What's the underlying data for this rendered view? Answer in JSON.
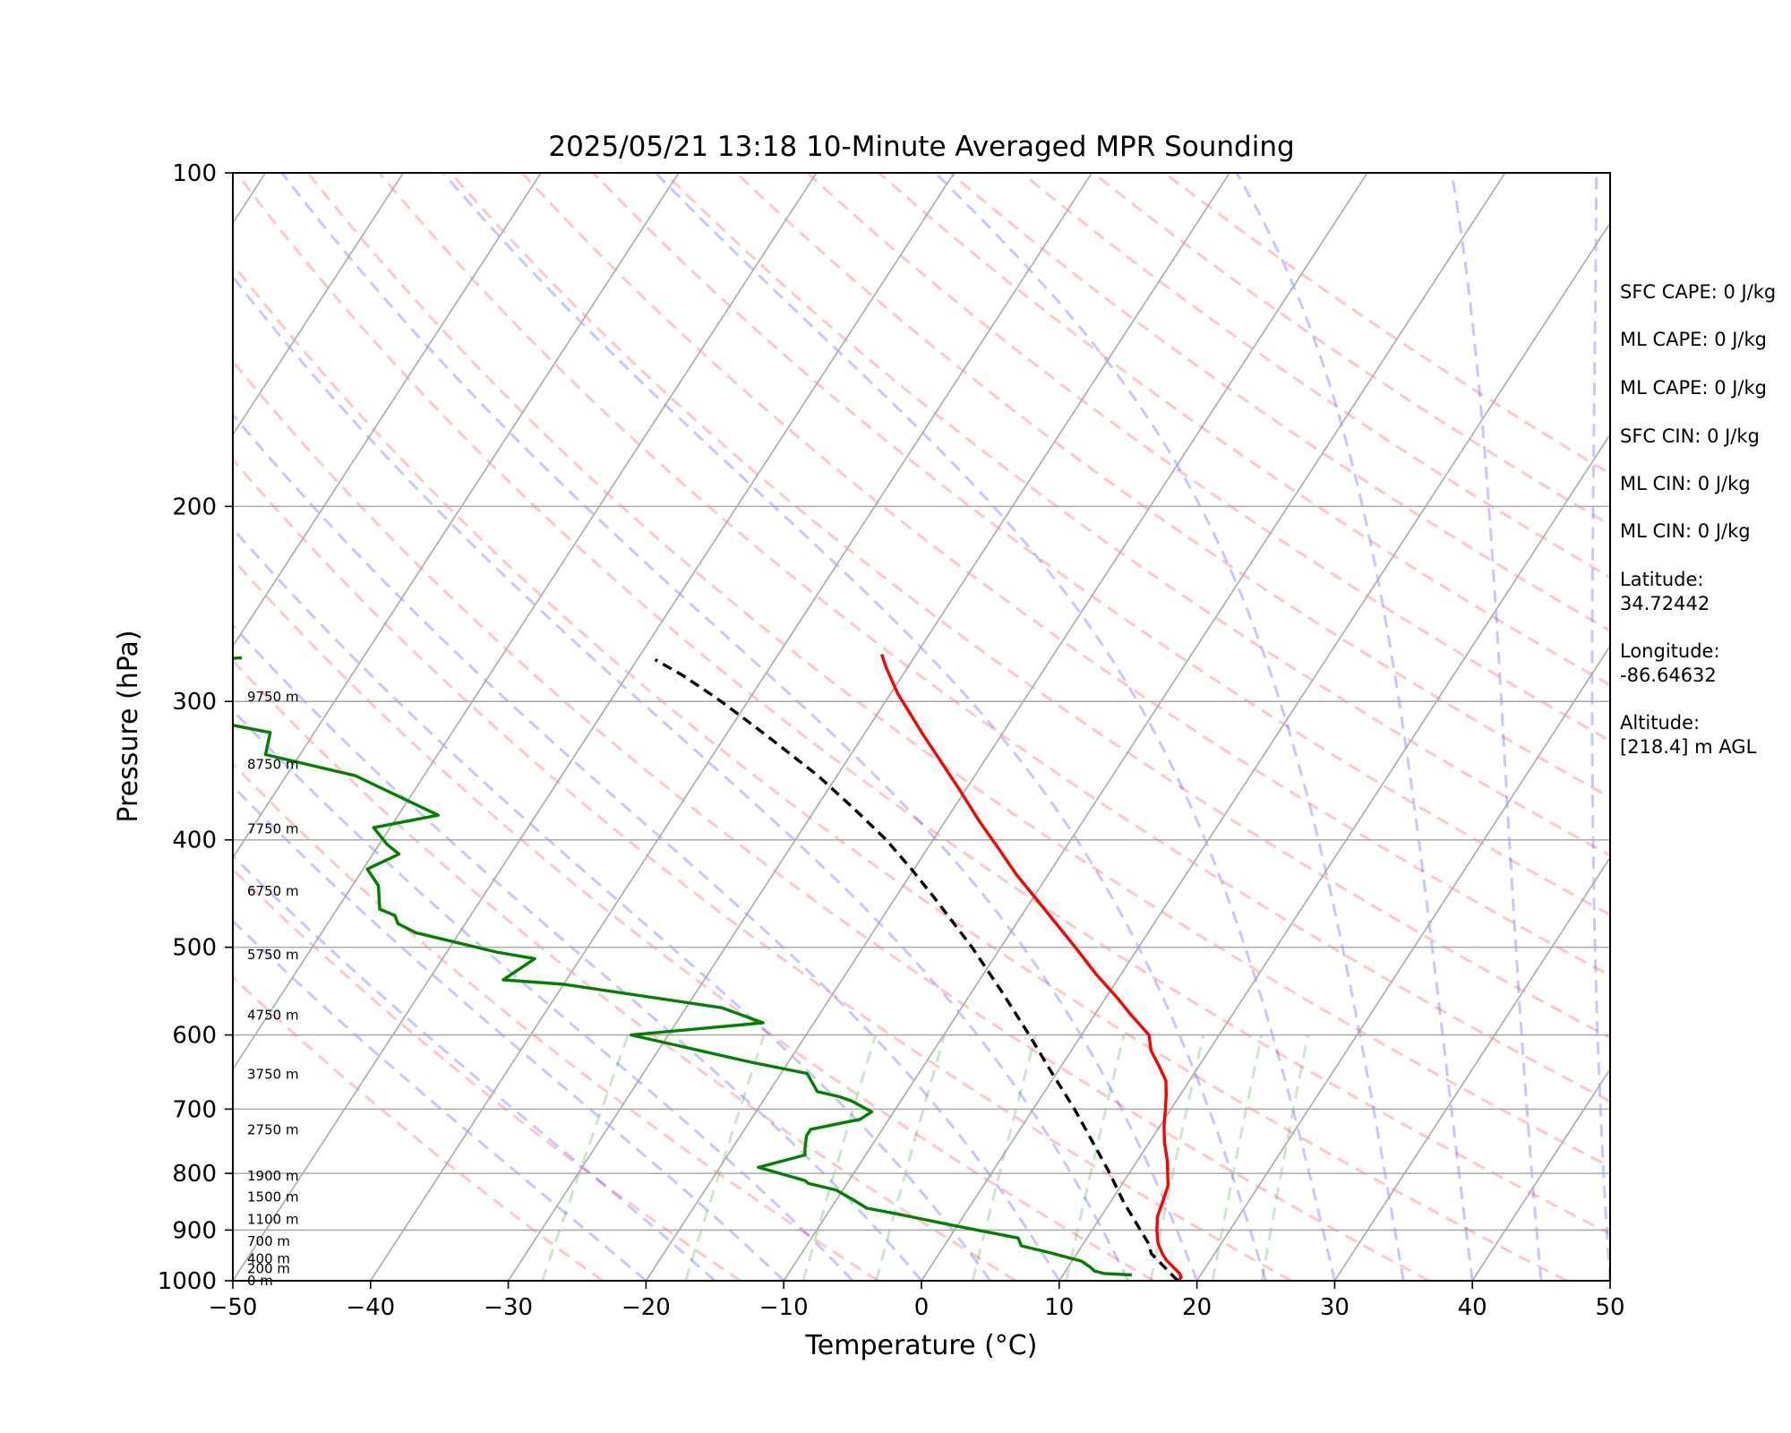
{
  "chart_data": {
    "type": "line",
    "subtype": "skew-T log-P sounding",
    "title": "2025/05/21 13:18 10-Minute Averaged MPR Sounding",
    "xlabel": "Temperature (°C)",
    "ylabel": "Pressure (hPa)",
    "xlim": [
      -50,
      50
    ],
    "ylim": [
      1000,
      100
    ],
    "y_scale": "log",
    "x_ticks": [
      "−50",
      "−40",
      "−30",
      "−20",
      "−10",
      "0",
      "10",
      "20",
      "30",
      "40",
      "50"
    ],
    "y_ticks": [
      "1000",
      "900",
      "800",
      "700",
      "600",
      "500",
      "400",
      "300",
      "200",
      "100"
    ],
    "grid": "horizontal isobars at tick pressures",
    "background": [
      "dry adiabats (dashed red)",
      "moist adiabats (dashed blue)",
      "mixing ratio lines (dashed green)",
      "skewed isotherms (gray)"
    ],
    "height_labels": [
      {
        "text": "0 m",
        "p": 1000
      },
      {
        "text": "200 m",
        "p": 975
      },
      {
        "text": "400 m",
        "p": 955
      },
      {
        "text": "700 m",
        "p": 921
      },
      {
        "text": "1100 m",
        "p": 880
      },
      {
        "text": "1500 m",
        "p": 840
      },
      {
        "text": "1900 m",
        "p": 804
      },
      {
        "text": "2750 m",
        "p": 731
      },
      {
        "text": "3750 m",
        "p": 651
      },
      {
        "text": "4750 m",
        "p": 576
      },
      {
        "text": "5750 m",
        "p": 508
      },
      {
        "text": "6750 m",
        "p": 445
      },
      {
        "text": "7750 m",
        "p": 391
      },
      {
        "text": "8750 m",
        "p": 342
      },
      {
        "text": "9750 m",
        "p": 297
      }
    ],
    "series": [
      {
        "role": "temperature",
        "color": "#ff0000",
        "style": "solid",
        "points": [
          [
            18.6,
            1000
          ],
          [
            18.7,
            993
          ],
          [
            18.4,
            985
          ],
          [
            16.8,
            958
          ],
          [
            16.2,
            945
          ],
          [
            15.4,
            925
          ],
          [
            14.7,
            900
          ],
          [
            14.1,
            875
          ],
          [
            13.8,
            850
          ],
          [
            13.4,
            820
          ],
          [
            12.8,
            800
          ],
          [
            12.2,
            780
          ],
          [
            11.1,
            750
          ],
          [
            10.3,
            725
          ],
          [
            9.6,
            700
          ],
          [
            9.0,
            680
          ],
          [
            8.3,
            660
          ],
          [
            7.1,
            640
          ],
          [
            5.8,
            620
          ],
          [
            4.9,
            600
          ],
          [
            2.6,
            575
          ],
          [
            0.9,
            556
          ],
          [
            -1.7,
            530
          ],
          [
            -4.6,
            500
          ],
          [
            -9.4,
            455
          ],
          [
            -12.3,
            430
          ],
          [
            -15.1,
            405
          ],
          [
            -17.5,
            385
          ],
          [
            -20.5,
            360
          ],
          [
            -25.9,
            320
          ],
          [
            -29.5,
            295
          ],
          [
            -31.5,
            280
          ],
          [
            -32.5,
            272
          ]
        ]
      },
      {
        "role": "parcel",
        "color": "#000000",
        "style": "dashed",
        "points": [
          [
            18.6,
            1000
          ],
          [
            15.4,
            945
          ],
          [
            14.7,
            925
          ],
          [
            13.5,
            900
          ],
          [
            11.0,
            850
          ],
          [
            8.6,
            800
          ],
          [
            5.9,
            750
          ],
          [
            3.0,
            700
          ],
          [
            -0.3,
            650
          ],
          [
            -3.8,
            600
          ],
          [
            -7.7,
            550
          ],
          [
            -12.1,
            500
          ],
          [
            -17.3,
            450
          ],
          [
            -20.2,
            425
          ],
          [
            -23.4,
            400
          ],
          [
            -27.2,
            375
          ],
          [
            -31.4,
            350
          ],
          [
            -36.4,
            325
          ],
          [
            -39.2,
            312
          ],
          [
            -42.4,
            298
          ],
          [
            -46.0,
            284
          ],
          [
            -48.7,
            275
          ]
        ]
      },
      {
        "role": "dewpoint",
        "color": "#008000",
        "style": "solid",
        "points": [
          [
            15.0,
            988
          ],
          [
            12.9,
            985
          ],
          [
            12.1,
            980
          ],
          [
            11.6,
            972
          ],
          [
            10.7,
            960
          ],
          [
            8.1,
            944
          ],
          [
            5.6,
            930
          ],
          [
            5.0,
            915
          ],
          [
            -0.6,
            890
          ],
          [
            -5.0,
            870
          ],
          [
            -7.4,
            860
          ],
          [
            -8.8,
            845
          ],
          [
            -10.5,
            828
          ],
          [
            -12.8,
            817
          ],
          [
            -13.2,
            812
          ],
          [
            -17.2,
            790
          ],
          [
            -14.4,
            770
          ],
          [
            -14.7,
            760
          ],
          [
            -15.2,
            740
          ],
          [
            -15.2,
            730
          ],
          [
            -12.1,
            715
          ],
          [
            -11.6,
            704
          ],
          [
            -13.6,
            688
          ],
          [
            -14.7,
            682
          ],
          [
            -16.5,
            675
          ],
          [
            -18.1,
            650
          ],
          [
            -22.7,
            635
          ],
          [
            -32.7,
            600
          ],
          [
            -23.7,
            585
          ],
          [
            -27.4,
            567
          ],
          [
            -40.0,
            540
          ],
          [
            -44.6,
            535
          ],
          [
            -43.3,
            512
          ],
          [
            -46.4,
            505
          ],
          [
            -53.2,
            485
          ],
          [
            -54.9,
            476
          ],
          [
            -55.5,
            468
          ],
          [
            -56.9,
            462
          ],
          [
            -58.1,
            440
          ],
          [
            -59.7,
            425
          ],
          [
            -58.1,
            412
          ],
          [
            -59.4,
            404
          ],
          [
            -61.2,
            390
          ],
          [
            -57.1,
            380
          ],
          [
            -65.0,
            350
          ],
          [
            -72.5,
            335
          ],
          [
            -73.2,
            320
          ],
          [
            -76.4,
            315
          ],
          [
            -85.6,
            300
          ],
          [
            -87.0,
            292
          ],
          [
            -88.5,
            289
          ],
          [
            -87.2,
            278
          ],
          [
            -78.8,
            274
          ]
        ]
      }
    ],
    "annotations": [
      {
        "text": "SFC CAPE: 0 J/kg"
      },
      {
        "text": "ML CAPE: 0 J/kg"
      },
      {
        "text": "ML CAPE: 0 J/kg"
      },
      {
        "text": "SFC CIN: 0 J/kg"
      },
      {
        "text": "ML CIN: 0 J/kg"
      },
      {
        "text": "ML CIN: 0 J/kg"
      },
      {
        "text": "Latitude:",
        "text2": "34.72442"
      },
      {
        "text": "Longitude:",
        "text2": "-86.64632"
      },
      {
        "text": "Altitude:",
        "text2": "[218.4] m AGL"
      }
    ]
  }
}
